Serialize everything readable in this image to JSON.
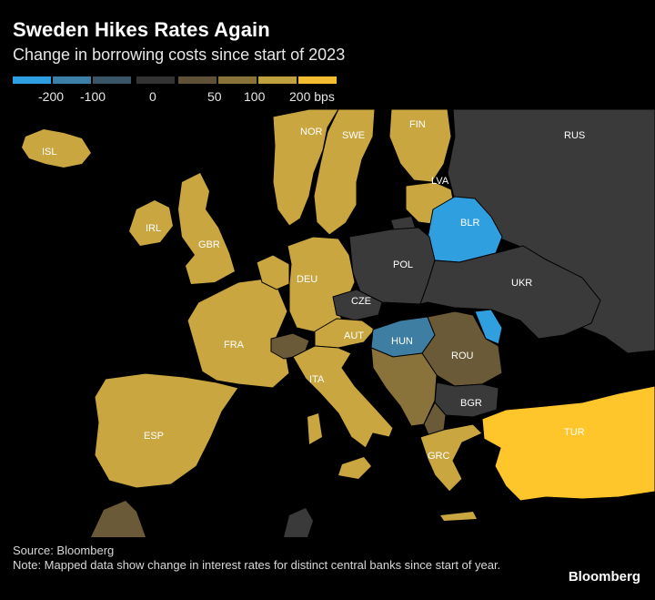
{
  "header": {
    "title": "Sweden Hikes Rates Again",
    "subtitle": "Change in borrowing costs since start of 2023"
  },
  "legend": {
    "unit": "bps",
    "swatches": [
      {
        "color": "#2e9fe0"
      },
      {
        "color": "#3d7fa6"
      },
      {
        "color": "#3a5566"
      },
      {
        "color": "#333333"
      },
      {
        "color": "#5e5135"
      },
      {
        "color": "#8a733a"
      },
      {
        "color": "#bfa13d"
      },
      {
        "color": "#f2be2f"
      }
    ],
    "labels": [
      "-200",
      "-100",
      "0",
      "50",
      "100",
      "200 bps"
    ]
  },
  "palette": {
    "ocean": "#000000",
    "hike_high": "#c9a640",
    "hike_top": "#ffc62c",
    "hike_mid": "#6b5a37",
    "neutral": "#3a3a3a",
    "cut_strong": "#2f9fe0",
    "cut_mid": "#3f7ea3",
    "label": "#ffffff"
  },
  "countries": [
    {
      "code": "ISL",
      "label": "ISL"
    },
    {
      "code": "NOR",
      "label": "NOR"
    },
    {
      "code": "SWE",
      "label": "SWE"
    },
    {
      "code": "FIN",
      "label": "FIN"
    },
    {
      "code": "RUS",
      "label": "RUS"
    },
    {
      "code": "LVA",
      "label": "LVA"
    },
    {
      "code": "BLR",
      "label": "BLR"
    },
    {
      "code": "IRL",
      "label": "IRL"
    },
    {
      "code": "GBR",
      "label": "GBR"
    },
    {
      "code": "DEU",
      "label": "DEU"
    },
    {
      "code": "POL",
      "label": "POL"
    },
    {
      "code": "CZE",
      "label": "CZE"
    },
    {
      "code": "UKR",
      "label": "UKR"
    },
    {
      "code": "FRA",
      "label": "FRA"
    },
    {
      "code": "AUT",
      "label": "AUT"
    },
    {
      "code": "HUN",
      "label": "HUN"
    },
    {
      "code": "ROU",
      "label": "ROU"
    },
    {
      "code": "ITA",
      "label": "ITA"
    },
    {
      "code": "BGR",
      "label": "BGR"
    },
    {
      "code": "TUR",
      "label": "TUR"
    },
    {
      "code": "ESP",
      "label": "ESP"
    },
    {
      "code": "GRC",
      "label": "GRC"
    }
  ],
  "footer": {
    "source": "Source: Bloomberg",
    "note": "Note: Mapped data show change in interest rates for distinct central banks since start of year.",
    "brand": "Bloomberg"
  }
}
